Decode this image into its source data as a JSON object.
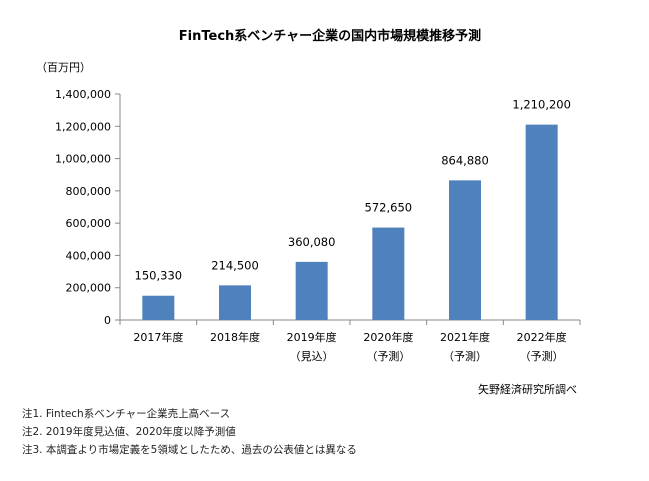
{
  "chart_data": {
    "type": "bar",
    "title": "FinTech系ベンチャー企業の国内市場規模推移予測",
    "unit_label": "（百万円）",
    "categories": [
      [
        "2017年度"
      ],
      [
        "2018年度"
      ],
      [
        "2019年度",
        "（見込）"
      ],
      [
        "2020年度",
        "（予測）"
      ],
      [
        "2021年度",
        "（予測）"
      ],
      [
        "2022年度",
        "（予測）"
      ]
    ],
    "values": [
      150330,
      214500,
      360080,
      572650,
      864880,
      1210200
    ],
    "data_labels": [
      "150,330",
      "214,500",
      "360,080",
      "572,650",
      "864,880",
      "1,210,200"
    ],
    "ylim": [
      0,
      1400000
    ],
    "yticks": [
      0,
      200000,
      400000,
      600000,
      800000,
      1000000,
      1200000,
      1400000
    ],
    "ytick_labels": [
      "0",
      "200,000",
      "400,000",
      "600,000",
      "800,000",
      "1,000,000",
      "1,200,000",
      "1,400,000"
    ],
    "grid": false,
    "bar_color": "#4f81bd",
    "source": "矢野経済研究所調べ"
  },
  "notes": [
    "注1. Fintech系ベンチャー企業売上高ベース",
    "注2. 2019年度見込値、2020年度以降予測値",
    "注3. 本調査より市場定義を5領域としたため、過去の公表値とは異なる"
  ]
}
